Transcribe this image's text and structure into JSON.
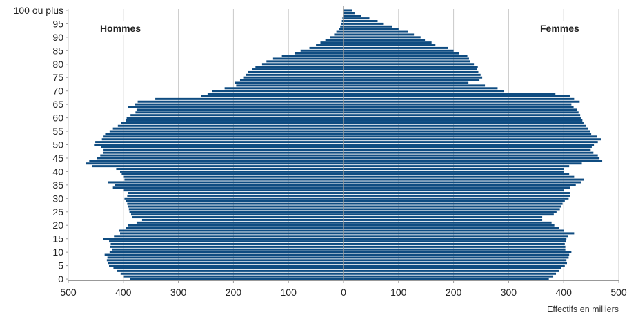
{
  "chart_data": {
    "type": "bar",
    "orientation": "horizontal",
    "subtype": "population-pyramid",
    "xlabel": "Effectifs en milliers",
    "xlim": [
      -500,
      500
    ],
    "x_ticks": [
      -500,
      -400,
      -300,
      -200,
      -100,
      0,
      100,
      200,
      300,
      400,
      500
    ],
    "x_tick_labels": [
      "500",
      "400",
      "300",
      "200",
      "100",
      "0",
      "100",
      "200",
      "300",
      "400",
      "500"
    ],
    "y_tick_values": [
      0,
      5,
      10,
      15,
      20,
      25,
      30,
      35,
      40,
      45,
      50,
      55,
      60,
      65,
      70,
      75,
      80,
      85,
      90,
      95,
      100
    ],
    "y_tick_labels": [
      "0",
      "5",
      "10",
      "15",
      "20",
      "25",
      "30",
      "35",
      "40",
      "45",
      "50",
      "55",
      "60",
      "65",
      "70",
      "75",
      "80",
      "85",
      "90",
      "95",
      "100 ou plus"
    ],
    "grid": true,
    "bar_color": "#0f4c81",
    "axis_color": "#999999",
    "grid_color": "#c8c8c8",
    "series": [
      {
        "name": "Hommes",
        "values": [
          388,
          399,
          405,
          411,
          418,
          426,
          428,
          430,
          429,
          434,
          425,
          421,
          424,
          423,
          426,
          437,
          417,
          406,
          408,
          395,
          391,
          376,
          366,
          384,
          386,
          389,
          390,
          391,
          393,
          395,
          398,
          393,
          392,
          399,
          419,
          415,
          428,
          398,
          399,
          403,
          406,
          413,
          457,
          468,
          462,
          448,
          442,
          437,
          436,
          441,
          452,
          451,
          439,
          436,
          433,
          425,
          419,
          410,
          404,
          396,
          394,
          387,
          378,
          376,
          391,
          379,
          374,
          342,
          259,
          247,
          239,
          216,
          195,
          197,
          188,
          181,
          177,
          174,
          166,
          160,
          148,
          140,
          128,
          112,
          89,
          78,
          62,
          50,
          42,
          33,
          25,
          17,
          13,
          8,
          6,
          4,
          3,
          2,
          1,
          1,
          1
        ]
      },
      {
        "name": "Femmes",
        "values": [
          373,
          381,
          386,
          391,
          396,
          402,
          406,
          405,
          409,
          410,
          414,
          403,
          403,
          402,
          404,
          405,
          408,
          419,
          400,
          392,
          383,
          378,
          361,
          361,
          382,
          387,
          393,
          395,
          398,
          402,
          409,
          412,
          411,
          401,
          412,
          422,
          432,
          437,
          419,
          410,
          400,
          401,
          410,
          433,
          470,
          465,
          462,
          454,
          449,
          451,
          455,
          462,
          468,
          461,
          450,
          448,
          444,
          440,
          436,
          434,
          431,
          430,
          427,
          424,
          418,
          414,
          429,
          419,
          411,
          385,
          292,
          280,
          257,
          227,
          247,
          252,
          249,
          245,
          243,
          244,
          237,
          230,
          228,
          225,
          210,
          200,
          190,
          167,
          160,
          148,
          140,
          128,
          117,
          100,
          88,
          72,
          62,
          47,
          32,
          20,
          16
        ]
      }
    ]
  }
}
